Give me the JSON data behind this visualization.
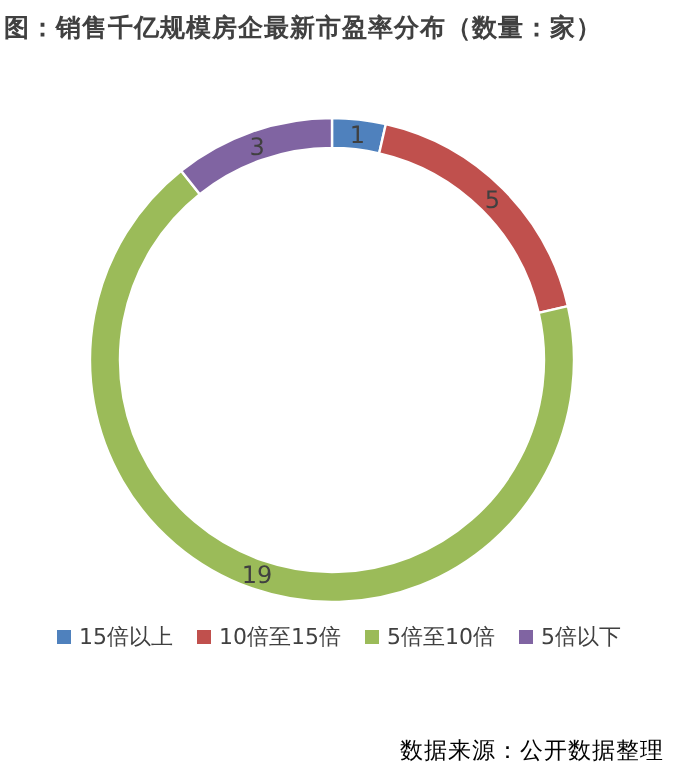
{
  "chart_data": {
    "type": "donut",
    "title": "图：销售千亿规模房企最新市盈率分布（数量：家）",
    "categories": [
      "15倍以上",
      "10倍至15倍",
      "5倍至10倍",
      "5倍以下"
    ],
    "values": [
      1,
      5,
      19,
      3
    ],
    "colors": [
      "#4f81bd",
      "#c0504d",
      "#9bbb59",
      "#8064a2"
    ],
    "data_labels": true,
    "legend": "bottom",
    "annotations": [
      "数据来源：公开数据整理"
    ]
  }
}
